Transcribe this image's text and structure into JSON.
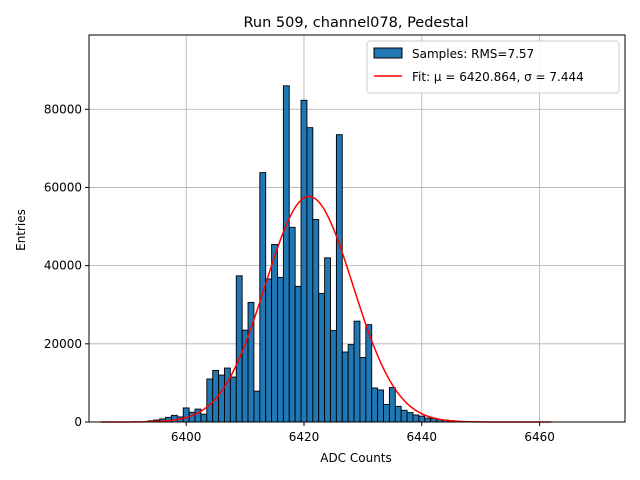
{
  "chart_data": {
    "type": "bar",
    "title": "Run 509, channel078, Pedestal",
    "xlabel": "ADC Counts",
    "ylabel": "Entries",
    "xlim": [
      6383.5,
      6474.5
    ],
    "ylim": [
      0,
      99000
    ],
    "xticks": [
      6400,
      6420,
      6440,
      6460
    ],
    "yticks": [
      0,
      20000,
      40000,
      60000,
      80000
    ],
    "grid": true,
    "legend_position": "top-right",
    "series": [
      {
        "name": "Samples: RMS=7.57",
        "kind": "histogram",
        "color": "#1f77b4",
        "edge_color": "#000000",
        "bin_width": 1,
        "x": [
          6394,
          6395,
          6396,
          6397,
          6398,
          6399,
          6400,
          6401,
          6402,
          6403,
          6404,
          6405,
          6406,
          6407,
          6408,
          6409,
          6410,
          6411,
          6412,
          6413,
          6414,
          6415,
          6416,
          6417,
          6418,
          6419,
          6420,
          6421,
          6422,
          6423,
          6424,
          6425,
          6426,
          6427,
          6428,
          6429,
          6430,
          6431,
          6432,
          6433,
          6434,
          6435,
          6436,
          6437,
          6438,
          6439,
          6440,
          6441,
          6442,
          6443,
          6444,
          6445
        ],
        "values": [
          300,
          500,
          800,
          1200,
          1700,
          1300,
          3600,
          2500,
          3300,
          2000,
          11000,
          13200,
          12000,
          13800,
          11500,
          37400,
          23500,
          30600,
          7900,
          63800,
          36600,
          45400,
          37000,
          86000,
          49800,
          34700,
          82300,
          75300,
          51800,
          32900,
          42000,
          23400,
          73500,
          17900,
          19800,
          25800,
          16500,
          24900,
          8700,
          8200,
          4500,
          8800,
          4000,
          3000,
          2400,
          1800,
          1500,
          1000,
          900,
          600,
          500,
          300
        ]
      },
      {
        "name": "Fit: μ = 6420.864, σ = 7.444",
        "kind": "gaussian",
        "color": "#ff0000",
        "mu": 6420.864,
        "sigma": 7.444,
        "amplitude": 57700,
        "x_range": [
          6385.5,
          6462
        ]
      }
    ]
  }
}
